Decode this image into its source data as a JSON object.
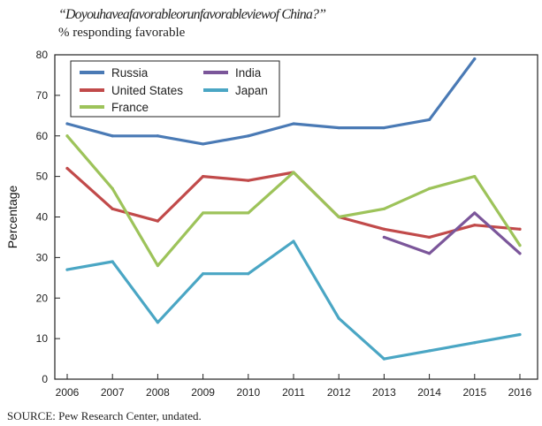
{
  "chart_data": {
    "type": "line",
    "title": "“Doyouhaveafavorableorunfavorableviewof China?”",
    "subtitle": "% responding favorable",
    "xlabel": "",
    "ylabel": "Percentage",
    "source": "SOURCE: Pew Research Center, undated.",
    "x_ticks": [
      "2006",
      "2007",
      "2008",
      "2009",
      "2010",
      "2011",
      "2012",
      "2013",
      "2014",
      "2015",
      "2016"
    ],
    "y_ticks": [
      0,
      10,
      20,
      30,
      40,
      50,
      60,
      70,
      80
    ],
    "ylim": [
      0,
      80
    ],
    "grid": false,
    "legend_position": "top-left",
    "series": [
      {
        "name": "Russia",
        "color": "#4a7ab5",
        "points": [
          [
            2006,
            63
          ],
          [
            2007,
            60
          ],
          [
            2008,
            60
          ],
          [
            2009,
            58
          ],
          [
            2010,
            60
          ],
          [
            2011,
            63
          ],
          [
            2012,
            62
          ],
          [
            2013,
            62
          ],
          [
            2014,
            64
          ],
          [
            2015,
            79
          ]
        ]
      },
      {
        "name": "United States",
        "color": "#c14a4a",
        "points": [
          [
            2006,
            52
          ],
          [
            2007,
            42
          ],
          [
            2008,
            39
          ],
          [
            2009,
            50
          ],
          [
            2010,
            49
          ],
          [
            2011,
            51
          ],
          [
            2012,
            40
          ],
          [
            2013,
            37
          ],
          [
            2014,
            35
          ],
          [
            2015,
            38
          ],
          [
            2016,
            37
          ]
        ]
      },
      {
        "name": "France",
        "color": "#9dc35a",
        "points": [
          [
            2006,
            60
          ],
          [
            2007,
            47
          ],
          [
            2008,
            28
          ],
          [
            2009,
            41
          ],
          [
            2010,
            41
          ],
          [
            2011,
            51
          ],
          [
            2012,
            40
          ],
          [
            2013,
            42
          ],
          [
            2014,
            47
          ],
          [
            2015,
            50
          ],
          [
            2016,
            33
          ]
        ]
      },
      {
        "name": "India",
        "color": "#7b569a",
        "points": [
          [
            2013,
            35
          ],
          [
            2014,
            31
          ],
          [
            2015,
            41
          ],
          [
            2016,
            31
          ]
        ]
      },
      {
        "name": "Japan",
        "color": "#4aa6c4",
        "points": [
          [
            2006,
            27
          ],
          [
            2007,
            29
          ],
          [
            2008,
            14
          ],
          [
            2009,
            26
          ],
          [
            2010,
            26
          ],
          [
            2011,
            34
          ],
          [
            2012,
            15
          ],
          [
            2013,
            5
          ],
          [
            2014,
            7
          ],
          [
            2015,
            9
          ],
          [
            2016,
            11
          ]
        ]
      }
    ]
  }
}
